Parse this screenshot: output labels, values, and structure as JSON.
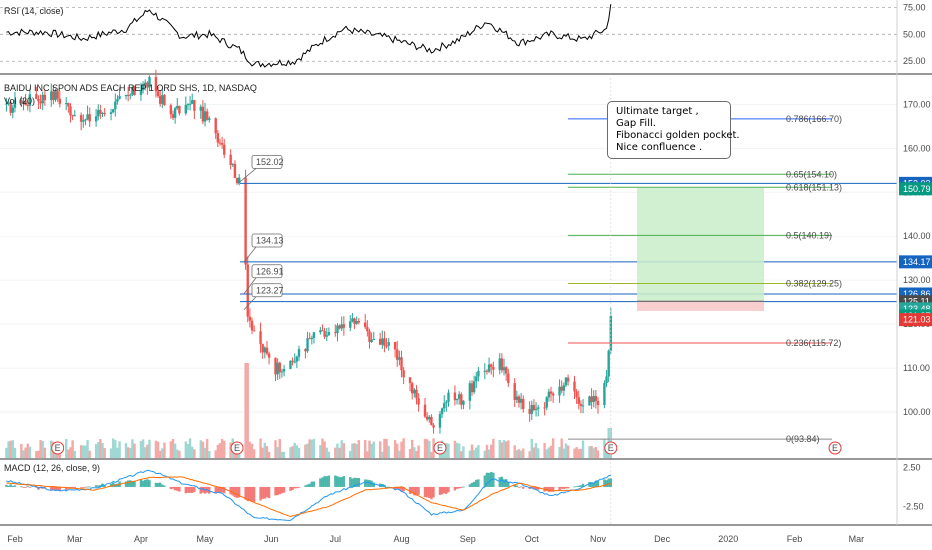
{
  "colors": {
    "up": "#26a69a",
    "down": "#ef5350",
    "macd": "#2196f3",
    "signal": "#ff6d00",
    "rsi": "#000000",
    "fib_blue": "#2962ff",
    "fib_green": "#4caf50",
    "fib_yellow": "#9cb92e",
    "fib_red": "#ef5350",
    "target_zone": "#c9ecc9",
    "stop_zone": "#f8c9c9"
  },
  "rsi_panel": {
    "title": "RSI (14, close)",
    "ticks": [
      "75.00",
      "50.00",
      "25.00"
    ],
    "ylim": [
      15,
      80
    ]
  },
  "main_panel": {
    "title": "BAIDU INC SPON ADS EACH REP 1 ORD SHS, 1D, NASDAQ",
    "volume_label": "Vol (20)",
    "ticks": [
      "170.00",
      "160.00",
      "150.00",
      "140.00",
      "130.00",
      "120.00",
      "110.00",
      "100.00"
    ],
    "ylim": [
      90,
      176
    ]
  },
  "macd_panel": {
    "title": "MACD (12, 26, close, 9)",
    "ticks": [
      "2.50",
      "-2.50"
    ],
    "ylim": [
      -4.5,
      3.2
    ]
  },
  "x_axis": {
    "labels": [
      "Feb",
      "Mar",
      "Apr",
      "May",
      "Jun",
      "Jul",
      "Aug",
      "Sep",
      "Oct",
      "Nov",
      "Dec",
      "2020",
      "Feb",
      "Mar"
    ]
  },
  "fib_levels": [
    {
      "label": "0.786(166.70)",
      "value": 166.7,
      "color": "blue"
    },
    {
      "label": "0.65(154.10)",
      "value": 154.1,
      "color": "green"
    },
    {
      "label": "0.618(151.13)",
      "value": 151.13,
      "color": "green"
    },
    {
      "label": "0.5(140.19)",
      "value": 140.19,
      "color": "green"
    },
    {
      "label": "0.382(129.25)",
      "value": 129.25,
      "color": "yellow"
    },
    {
      "label": "0.236(115.72)",
      "value": 115.72,
      "color": "red"
    },
    {
      "label": "0(93.84)",
      "value": 93.84,
      "color": "gray"
    }
  ],
  "callouts": [
    {
      "label": "152.02",
      "value": 152.02
    },
    {
      "label": "134.13",
      "value": 134.13
    },
    {
      "label": "126.91",
      "value": 126.91
    },
    {
      "label": "123.27",
      "value": 123.27
    }
  ],
  "horizontal_lines": [
    152.03,
    134.17,
    126.86,
    125.11
  ],
  "price_badges": [
    {
      "label": "152.03",
      "value": 152.03,
      "color": "#1565c0"
    },
    {
      "label": "150.79",
      "value": 150.79,
      "color": "#089981"
    },
    {
      "label": "134.17",
      "value": 134.17,
      "color": "#1565c0"
    },
    {
      "label": "126.86",
      "value": 126.86,
      "color": "#1565c0"
    },
    {
      "label": "125.11",
      "value": 125.11,
      "color": "#4a4a4a"
    },
    {
      "label": "123.48",
      "value": 123.48,
      "color": "#26a69a"
    },
    {
      "label": "121.87",
      "value": 121.87,
      "color": "#089981"
    },
    {
      "label": "121.03",
      "value": 121.03,
      "color": "#e53935"
    }
  ],
  "position_tool": {
    "target": 151.0,
    "entry": 125.2,
    "stop": 123.0
  },
  "annotation": {
    "lines": [
      "Ultimate target ,",
      "Gap Fill.",
      "Fibonacci golden pocket.",
      "Nice confluence ."
    ]
  },
  "earnings_markers": [
    "E",
    "E",
    "E",
    "E",
    "E"
  ],
  "chart_data": {
    "type": "candlestick",
    "title": "BAIDU INC SPON ADS EACH REP 1 ORD SHS, 1D, NASDAQ",
    "x_range": [
      "2019-01-25",
      "2020-03-20"
    ],
    "price_ylim": [
      90,
      176
    ],
    "price_path": [
      {
        "date": "2019-01-28",
        "close": 169
      },
      {
        "date": "2019-02-08",
        "close": 171
      },
      {
        "date": "2019-02-20",
        "close": 172
      },
      {
        "date": "2019-03-05",
        "close": 166
      },
      {
        "date": "2019-03-20",
        "close": 170
      },
      {
        "date": "2019-04-05",
        "close": 175
      },
      {
        "date": "2019-04-15",
        "close": 168
      },
      {
        "date": "2019-04-25",
        "close": 170
      },
      {
        "date": "2019-05-03",
        "close": 166
      },
      {
        "date": "2019-05-08",
        "close": 162
      },
      {
        "date": "2019-05-13",
        "close": 157
      },
      {
        "date": "2019-05-17",
        "close": 152
      },
      {
        "date": "2019-05-20",
        "close": 134
      },
      {
        "date": "2019-05-21",
        "close": 123
      },
      {
        "date": "2019-05-24",
        "close": 117
      },
      {
        "date": "2019-06-03",
        "close": 110
      },
      {
        "date": "2019-06-12",
        "close": 112
      },
      {
        "date": "2019-06-20",
        "close": 117
      },
      {
        "date": "2019-07-01",
        "close": 118
      },
      {
        "date": "2019-07-09",
        "close": 121
      },
      {
        "date": "2019-07-18",
        "close": 117
      },
      {
        "date": "2019-07-26",
        "close": 116
      },
      {
        "date": "2019-08-01",
        "close": 110
      },
      {
        "date": "2019-08-08",
        "close": 103
      },
      {
        "date": "2019-08-15",
        "close": 97
      },
      {
        "date": "2019-08-22",
        "close": 103
      },
      {
        "date": "2019-08-30",
        "close": 103
      },
      {
        "date": "2019-09-09",
        "close": 110
      },
      {
        "date": "2019-09-16",
        "close": 111
      },
      {
        "date": "2019-09-25",
        "close": 102
      },
      {
        "date": "2019-10-03",
        "close": 100
      },
      {
        "date": "2019-10-10",
        "close": 104
      },
      {
        "date": "2019-10-17",
        "close": 107
      },
      {
        "date": "2019-10-25",
        "close": 102
      },
      {
        "date": "2019-11-01",
        "close": 103
      },
      {
        "date": "2019-11-05",
        "close": 109
      },
      {
        "date": "2019-11-07",
        "close": 121.87
      }
    ],
    "rsi_path": [
      {
        "date": "2019-01-28",
        "value": 52
      },
      {
        "date": "2019-02-15",
        "value": 52
      },
      {
        "date": "2019-03-05",
        "value": 46
      },
      {
        "date": "2019-03-25",
        "value": 55
      },
      {
        "date": "2019-04-05",
        "value": 73
      },
      {
        "date": "2019-04-20",
        "value": 48
      },
      {
        "date": "2019-05-03",
        "value": 50
      },
      {
        "date": "2019-05-17",
        "value": 36
      },
      {
        "date": "2019-05-24",
        "value": 22
      },
      {
        "date": "2019-06-12",
        "value": 25
      },
      {
        "date": "2019-06-25",
        "value": 44
      },
      {
        "date": "2019-07-05",
        "value": 55
      },
      {
        "date": "2019-07-25",
        "value": 47
      },
      {
        "date": "2019-08-15",
        "value": 35
      },
      {
        "date": "2019-08-28",
        "value": 45
      },
      {
        "date": "2019-09-10",
        "value": 62
      },
      {
        "date": "2019-09-25",
        "value": 42
      },
      {
        "date": "2019-10-10",
        "value": 50
      },
      {
        "date": "2019-10-25",
        "value": 45
      },
      {
        "date": "2019-11-05",
        "value": 55
      },
      {
        "date": "2019-11-07",
        "value": 78
      }
    ],
    "macd_path": [
      {
        "date": "2019-01-28",
        "macd": 0.8,
        "signal": 0.5
      },
      {
        "date": "2019-02-20",
        "macd": -0.5,
        "signal": 0.0
      },
      {
        "date": "2019-03-10",
        "macd": -0.2,
        "signal": -0.4
      },
      {
        "date": "2019-04-05",
        "macd": 2.2,
        "signal": 1.2
      },
      {
        "date": "2019-04-20",
        "macd": 0.5,
        "signal": 1.3
      },
      {
        "date": "2019-05-10",
        "macd": -1.0,
        "signal": -0.2
      },
      {
        "date": "2019-05-24",
        "macd": -4.0,
        "signal": -2.0
      },
      {
        "date": "2019-06-10",
        "macd": -4.2,
        "signal": -3.8
      },
      {
        "date": "2019-06-28",
        "macd": -1.0,
        "signal": -2.5
      },
      {
        "date": "2019-07-15",
        "macd": 0.6,
        "signal": -0.4
      },
      {
        "date": "2019-08-01",
        "macd": -0.5,
        "signal": 0.0
      },
      {
        "date": "2019-08-15",
        "macd": -3.5,
        "signal": -2.0
      },
      {
        "date": "2019-08-30",
        "macd": -3.0,
        "signal": -3.0
      },
      {
        "date": "2019-09-12",
        "macd": 1.0,
        "signal": -1.0
      },
      {
        "date": "2019-09-25",
        "macd": 0.5,
        "signal": 0.5
      },
      {
        "date": "2019-10-10",
        "macd": -1.2,
        "signal": -0.5
      },
      {
        "date": "2019-10-25",
        "macd": 0.0,
        "signal": -0.4
      },
      {
        "date": "2019-11-07",
        "macd": 1.5,
        "signal": 0.4
      }
    ]
  }
}
